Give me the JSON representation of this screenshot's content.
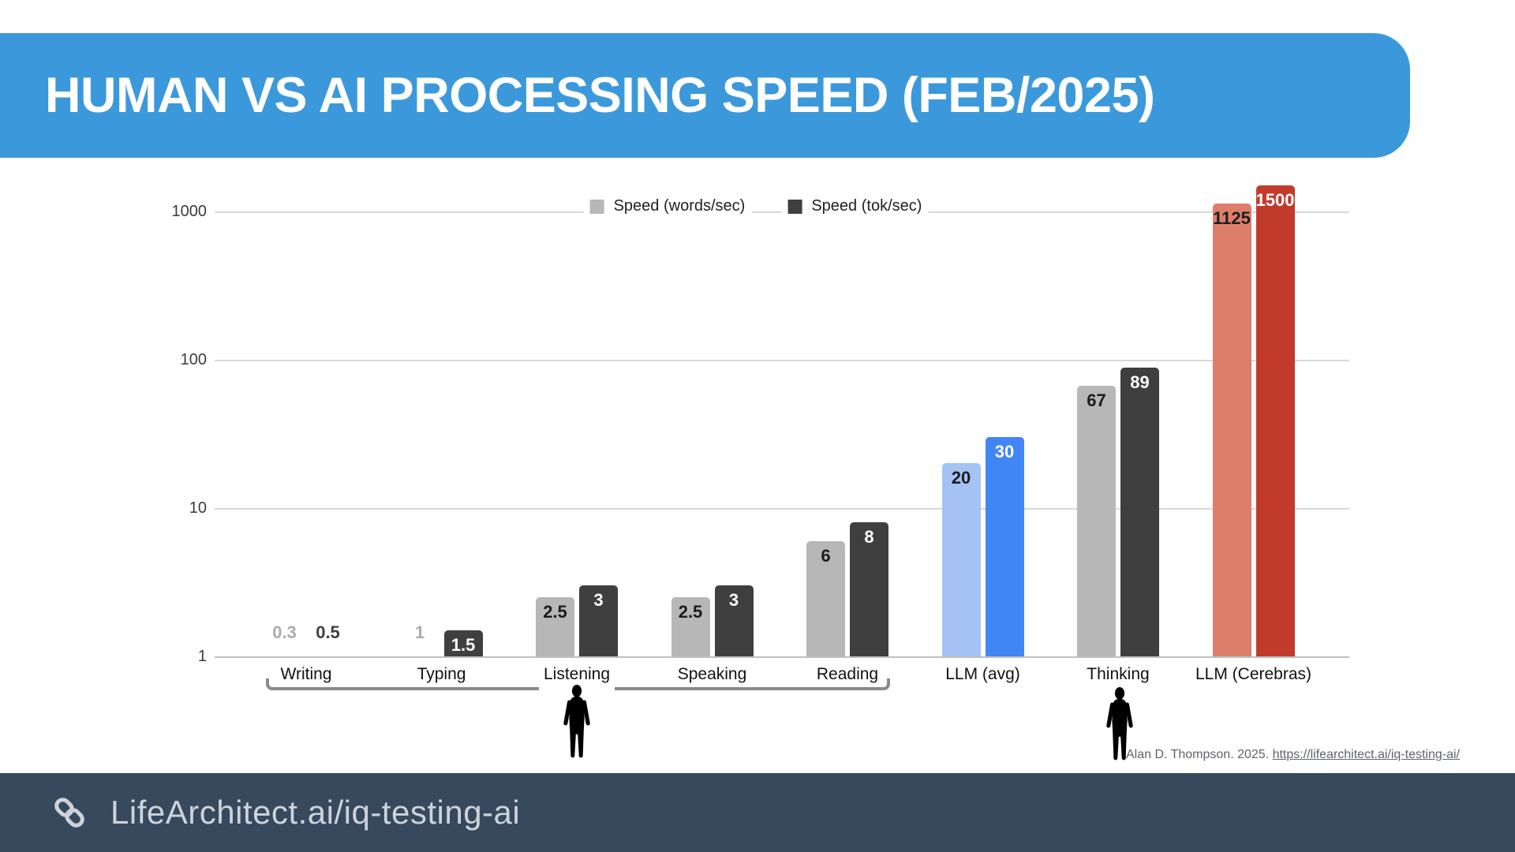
{
  "header": {
    "title": "HUMAN VS AI PROCESSING SPEED (FEB/2025)",
    "bg_color": "#3B99DB",
    "text_color": "#FFFFFF"
  },
  "chart_data": {
    "type": "bar",
    "y_scale": "log",
    "categories": [
      "Writing",
      "Typing",
      "Listening",
      "Speaking",
      "Reading",
      "LLM (avg)",
      "Thinking",
      "LLM (Cerebras)"
    ],
    "series": [
      {
        "name": "Speed (words/sec)",
        "values": [
          0.3,
          1,
          2.5,
          2.5,
          6,
          20,
          67,
          1125
        ],
        "default_color": "#B7B7B7",
        "colors": [
          "#B7B7B7",
          "#B7B7B7",
          "#B7B7B7",
          "#B7B7B7",
          "#B7B7B7",
          "#A4C2F4",
          "#B7B7B7",
          "#DD7E6B"
        ],
        "label_color_inside": "#1C1C1C",
        "label_color_outside": "#ABABAB"
      },
      {
        "name": "Speed (tok/sec)",
        "values": [
          0.5,
          1.5,
          3,
          3,
          8,
          30,
          89,
          1500
        ],
        "default_color": "#3F3F3F",
        "colors": [
          "#3F3F3F",
          "#3F3F3F",
          "#3F3F3F",
          "#3F3F3F",
          "#3F3F3F",
          "#4285F4",
          "#3F3F3F",
          "#C23B2A"
        ],
        "label_color_inside": "#FFFFFF",
        "label_color_outside": "#3F3F3F"
      }
    ],
    "y_ticks": [
      1,
      10,
      100,
      1000
    ],
    "y_tick_labels": [
      "1",
      "10",
      "100",
      "1000"
    ],
    "ylim": [
      1,
      1600
    ],
    "legend_position": "top",
    "grid": true,
    "annotations": {
      "human_icon_categories": [
        "Listening",
        "Thinking"
      ],
      "bracket_span": {
        "from": "Writing",
        "to": "Reading"
      }
    }
  },
  "attribution": {
    "prefix": "Alan D. Thompson. 2025. ",
    "link_text": "https://lifearchitect.ai/iq-testing-ai/"
  },
  "footer": {
    "link_text": "LifeArchitect.ai/iq-testing-ai",
    "bg_color": "#37495C",
    "text_color": "#CDD3D9"
  }
}
